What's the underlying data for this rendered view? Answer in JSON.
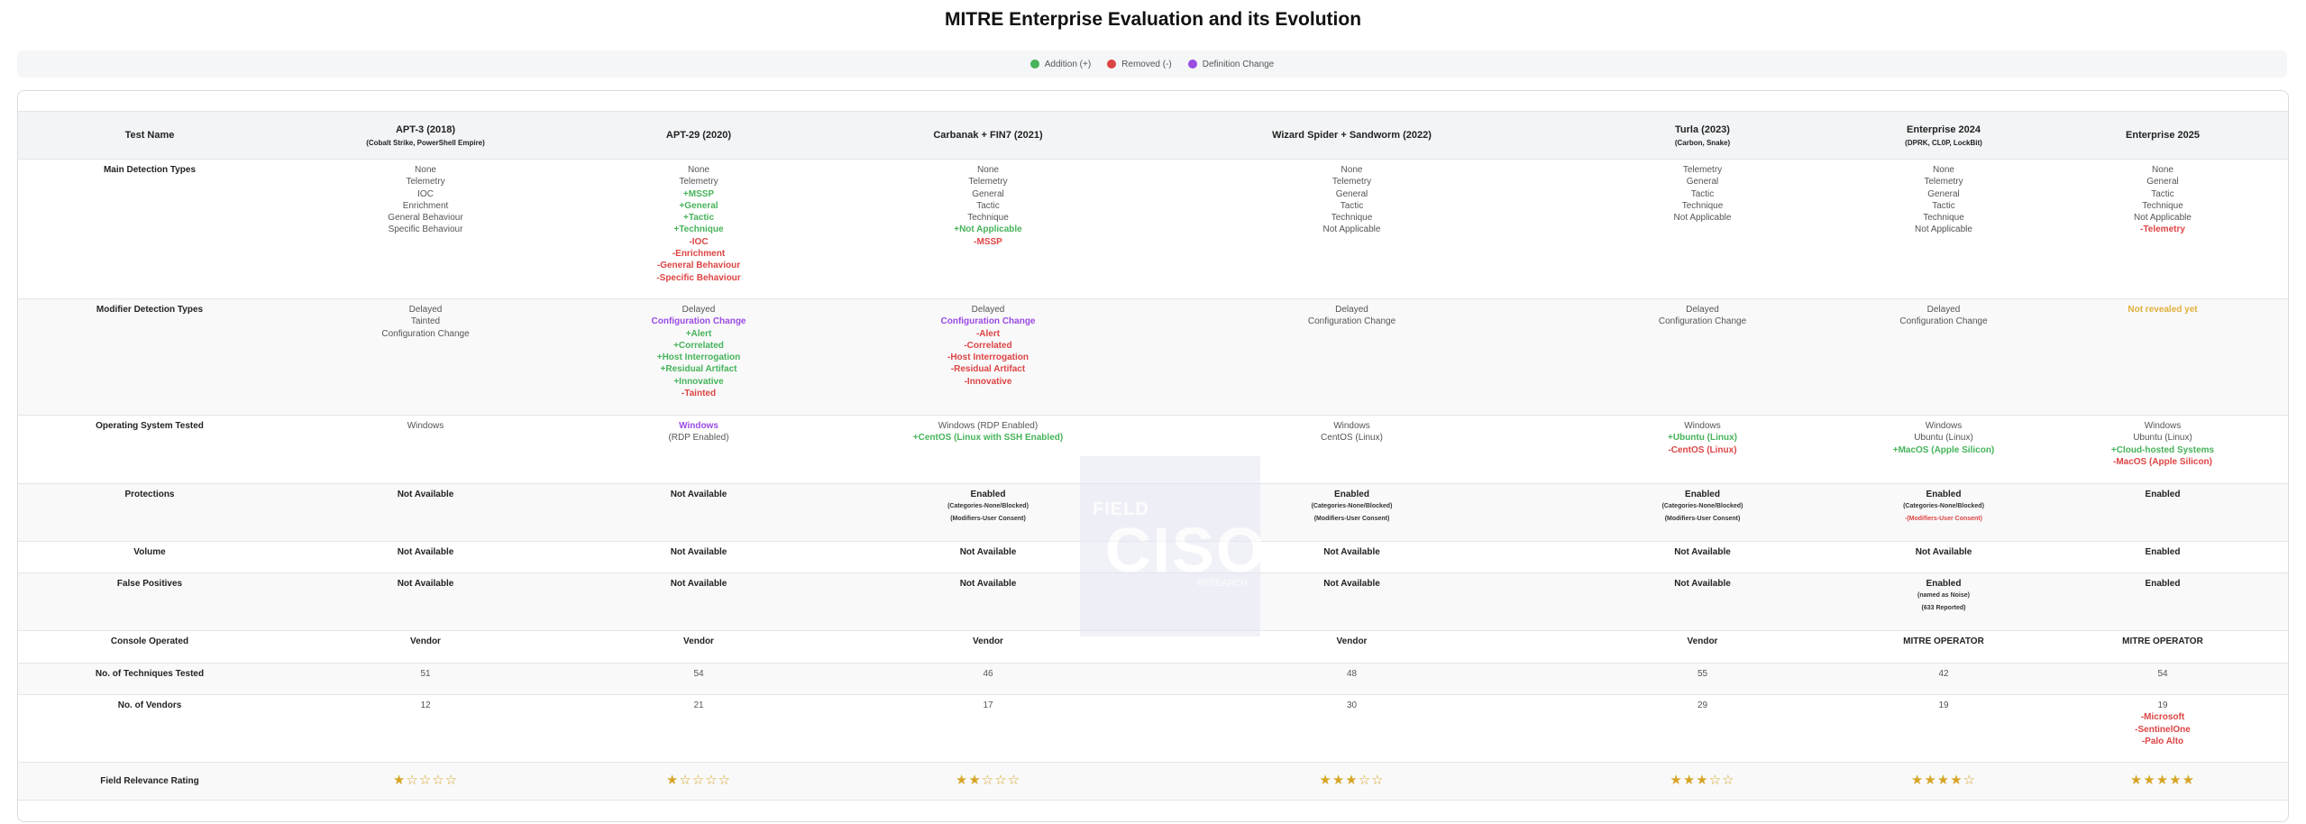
{
  "title": "MITRE Enterprise Evaluation and its Evolution",
  "legend": [
    {
      "label": "Addition (+)",
      "color": "#46b35a"
    },
    {
      "label": "Removed (-)",
      "color": "#dd4444"
    },
    {
      "label": "Definition Change",
      "color": "#9b4be2"
    }
  ],
  "watermark": {
    "top": "FIELD",
    "main": "CISO",
    "bottom": "RESEARCH"
  },
  "chart_data": {
    "type": "table",
    "header_first": "Test Name",
    "columns": [
      {
        "name": "APT-3 (2018)",
        "sub": "(Cobalt Strike, PowerShell Empire)"
      },
      {
        "name": "APT-29 (2020)",
        "sub": ""
      },
      {
        "name": "Carbanak + FIN7 (2021)",
        "sub": ""
      },
      {
        "name": "Wizard Spider + Sandworm (2022)",
        "sub": ""
      },
      {
        "name": "Turla (2023)",
        "sub": "(Carbon, Snake)"
      },
      {
        "name": "Enterprise 2024",
        "sub": "(DPRK, CL0P, LockBit)"
      },
      {
        "name": "Enterprise 2025",
        "sub": ""
      }
    ],
    "rows": [
      {
        "name": "Main Detection Types",
        "height": 155,
        "cells": [
          [
            {
              "t": "None",
              "s": "n"
            },
            {
              "t": "Telemetry",
              "s": "n"
            },
            {
              "t": "IOC",
              "s": "n"
            },
            {
              "t": "Enrichment",
              "s": "n"
            },
            {
              "t": "General Behaviour",
              "s": "n"
            },
            {
              "t": "Specific Behaviour",
              "s": "n"
            }
          ],
          [
            {
              "t": "None",
              "s": "n"
            },
            {
              "t": "Telemetry",
              "s": "n"
            },
            {
              "t": "+MSSP",
              "s": "add"
            },
            {
              "t": "+General",
              "s": "add"
            },
            {
              "t": "+Tactic",
              "s": "add"
            },
            {
              "t": "+Technique",
              "s": "add"
            },
            {
              "t": "-IOC",
              "s": "rem"
            },
            {
              "t": "-Enrichment",
              "s": "rem"
            },
            {
              "t": "-General Behaviour",
              "s": "rem"
            },
            {
              "t": "-Specific Behaviour",
              "s": "rem"
            }
          ],
          [
            {
              "t": "None",
              "s": "n"
            },
            {
              "t": "Telemetry",
              "s": "n"
            },
            {
              "t": "General",
              "s": "n"
            },
            {
              "t": "Tactic",
              "s": "n"
            },
            {
              "t": "Technique",
              "s": "n"
            },
            {
              "t": "+Not Applicable",
              "s": "add"
            },
            {
              "t": "-MSSP",
              "s": "rem"
            }
          ],
          [
            {
              "t": "None",
              "s": "n"
            },
            {
              "t": "Telemetry",
              "s": "n"
            },
            {
              "t": "General",
              "s": "n"
            },
            {
              "t": "Tactic",
              "s": "n"
            },
            {
              "t": "Technique",
              "s": "n"
            },
            {
              "t": "Not Applicable",
              "s": "n"
            }
          ],
          [
            {
              "t": "Telemetry",
              "s": "n"
            },
            {
              "t": "General",
              "s": "n"
            },
            {
              "t": "Tactic",
              "s": "n"
            },
            {
              "t": "Technique",
              "s": "n"
            },
            {
              "t": "Not Applicable",
              "s": "n"
            }
          ],
          [
            {
              "t": "None",
              "s": "n"
            },
            {
              "t": "Telemetry",
              "s": "n"
            },
            {
              "t": "General",
              "s": "n"
            },
            {
              "t": "Tactic",
              "s": "n"
            },
            {
              "t": "Technique",
              "s": "n"
            },
            {
              "t": "Not Applicable",
              "s": "n"
            }
          ],
          [
            {
              "t": "None",
              "s": "n"
            },
            {
              "t": "General",
              "s": "n"
            },
            {
              "t": "Tactic",
              "s": "n"
            },
            {
              "t": "Technique",
              "s": "n"
            },
            {
              "t": "Not Applicable",
              "s": "n"
            },
            {
              "t": "-Telemetry",
              "s": "rem"
            }
          ]
        ]
      },
      {
        "name": "Modifier Detection Types",
        "height": 129,
        "cells": [
          [
            {
              "t": "Delayed",
              "s": "n"
            },
            {
              "t": "Tainted",
              "s": "n"
            },
            {
              "t": "Configuration Change",
              "s": "n"
            }
          ],
          [
            {
              "t": "Delayed",
              "s": "n"
            },
            {
              "t": "Configuration Change",
              "s": "def"
            },
            {
              "t": "+Alert",
              "s": "add"
            },
            {
              "t": "+Correlated",
              "s": "add"
            },
            {
              "t": "+Host Interrogation",
              "s": "add"
            },
            {
              "t": "+Residual Artifact",
              "s": "add"
            },
            {
              "t": "+Innovative",
              "s": "add"
            },
            {
              "t": "-Tainted",
              "s": "rem"
            }
          ],
          [
            {
              "t": "Delayed",
              "s": "n"
            },
            {
              "t": "Configuration Change",
              "s": "def"
            },
            {
              "t": "-Alert",
              "s": "rem"
            },
            {
              "t": "-Correlated",
              "s": "rem"
            },
            {
              "t": "-Host Interrogation",
              "s": "rem"
            },
            {
              "t": "-Residual Artifact",
              "s": "rem"
            },
            {
              "t": "-Innovative",
              "s": "rem"
            }
          ],
          [
            {
              "t": "Delayed",
              "s": "n"
            },
            {
              "t": "Configuration Change",
              "s": "n"
            }
          ],
          [
            {
              "t": "Delayed",
              "s": "n"
            },
            {
              "t": "Configuration Change",
              "s": "n"
            }
          ],
          [
            {
              "t": "Delayed",
              "s": "n"
            },
            {
              "t": "Configuration Change",
              "s": "n"
            }
          ],
          [
            {
              "t": "Not revealed yet",
              "s": "rev"
            }
          ]
        ]
      },
      {
        "name": "Operating System Tested",
        "height": 76,
        "cells": [
          [
            {
              "t": "Windows",
              "s": "n"
            }
          ],
          [
            {
              "t": "Windows",
              "s": "def"
            },
            {
              "t": "(RDP Enabled)",
              "s": "n"
            }
          ],
          [
            {
              "t": "Windows (RDP Enabled)",
              "s": "n"
            },
            {
              "t": "+CentOS (Linux with SSH Enabled)",
              "s": "add"
            }
          ],
          [
            {
              "t": "Windows",
              "s": "n"
            },
            {
              "t": "CentOS (Linux)",
              "s": "n"
            }
          ],
          [
            {
              "t": "Windows",
              "s": "n"
            },
            {
              "t": "+Ubuntu (Linux)",
              "s": "add"
            },
            {
              "t": "-CentOS (Linux)",
              "s": "rem"
            }
          ],
          [
            {
              "t": "Windows",
              "s": "n"
            },
            {
              "t": "Ubuntu (Linux)",
              "s": "n"
            },
            {
              "t": "+MacOS (Apple Silicon)",
              "s": "add"
            }
          ],
          [
            {
              "t": "Windows",
              "s": "n"
            },
            {
              "t": "Ubuntu (Linux)",
              "s": "n"
            },
            {
              "t": "+Cloud-hosted Systems",
              "s": "add"
            },
            {
              "t": "-MacOS (Apple Silicon)",
              "s": "rem"
            }
          ]
        ]
      },
      {
        "name": "Protections",
        "height": 64,
        "cells": [
          [
            {
              "t": "Not Available",
              "s": "b"
            }
          ],
          [
            {
              "t": "Not Available",
              "s": "b"
            }
          ],
          [
            {
              "t": "Enabled",
              "s": "b"
            },
            {
              "t": "(Categories-None/Blocked)",
              "s": "sm"
            },
            {
              "t": "(Modifiers-User Consent)",
              "s": "sm"
            }
          ],
          [
            {
              "t": "Enabled",
              "s": "b"
            },
            {
              "t": "(Categories-None/Blocked)",
              "s": "sm"
            },
            {
              "t": "(Modifiers-User Consent)",
              "s": "sm"
            }
          ],
          [
            {
              "t": "Enabled",
              "s": "b"
            },
            {
              "t": "(Categories-None/Blocked)",
              "s": "sm"
            },
            {
              "t": "(Modifiers-User Consent)",
              "s": "sm"
            }
          ],
          [
            {
              "t": "Enabled",
              "s": "b"
            },
            {
              "t": "(Categories-None/Blocked)",
              "s": "sm"
            },
            {
              "t": "-(Modifiers-User Consent)",
              "s": "smrem"
            }
          ],
          [
            {
              "t": "Enabled",
              "s": "b"
            }
          ]
        ]
      },
      {
        "name": "Volume",
        "height": 35,
        "cells": [
          [
            {
              "t": "Not Available",
              "s": "b"
            }
          ],
          [
            {
              "t": "Not Available",
              "s": "b"
            }
          ],
          [
            {
              "t": "Not Available",
              "s": "b"
            }
          ],
          [
            {
              "t": "Not Available",
              "s": "b"
            }
          ],
          [
            {
              "t": "Not Available",
              "s": "b"
            }
          ],
          [
            {
              "t": "Not Available",
              "s": "b"
            }
          ],
          [
            {
              "t": "Enabled",
              "s": "b"
            }
          ]
        ]
      },
      {
        "name": "False Positives",
        "height": 64,
        "cells": [
          [
            {
              "t": "Not Available",
              "s": "b"
            }
          ],
          [
            {
              "t": "Not Available",
              "s": "b"
            }
          ],
          [
            {
              "t": "Not Available",
              "s": "b"
            }
          ],
          [
            {
              "t": "Not Available",
              "s": "b"
            }
          ],
          [
            {
              "t": "Not Available",
              "s": "b"
            }
          ],
          [
            {
              "t": "Enabled",
              "s": "b"
            },
            {
              "t": "(named as Noise)",
              "s": "sm"
            },
            {
              "t": "(633 Reported)",
              "s": "sm"
            }
          ],
          [
            {
              "t": "Enabled",
              "s": "b"
            }
          ]
        ]
      },
      {
        "name": "Console Operated",
        "height": 36,
        "cells": [
          [
            {
              "t": "Vendor",
              "s": "b"
            }
          ],
          [
            {
              "t": "Vendor",
              "s": "b"
            }
          ],
          [
            {
              "t": "Vendor",
              "s": "b"
            }
          ],
          [
            {
              "t": "Vendor",
              "s": "b"
            }
          ],
          [
            {
              "t": "Vendor",
              "s": "b"
            }
          ],
          [
            {
              "t": "MITRE OPERATOR",
              "s": "b"
            }
          ],
          [
            {
              "t": "MITRE OPERATOR",
              "s": "b"
            }
          ]
        ]
      },
      {
        "name": "No. of Techniques Tested",
        "height": 35,
        "cells": [
          [
            {
              "t": "51",
              "s": "n"
            }
          ],
          [
            {
              "t": "54",
              "s": "n"
            }
          ],
          [
            {
              "t": "46",
              "s": "n"
            }
          ],
          [
            {
              "t": "48",
              "s": "n"
            }
          ],
          [
            {
              "t": "55",
              "s": "n"
            }
          ],
          [
            {
              "t": "42",
              "s": "n"
            }
          ],
          [
            {
              "t": "54",
              "s": "n"
            }
          ]
        ]
      },
      {
        "name": "No. of Vendors",
        "height": 75,
        "cells": [
          [
            {
              "t": "12",
              "s": "n"
            }
          ],
          [
            {
              "t": "21",
              "s": "n"
            }
          ],
          [
            {
              "t": "17",
              "s": "n"
            }
          ],
          [
            {
              "t": "30",
              "s": "n"
            }
          ],
          [
            {
              "t": "29",
              "s": "n"
            }
          ],
          [
            {
              "t": "19",
              "s": "n"
            }
          ],
          [
            {
              "t": "19",
              "s": "n"
            },
            {
              "t": "-Microsoft",
              "s": "rem"
            },
            {
              "t": "-SentinelOne",
              "s": "rem"
            },
            {
              "t": "-Palo Alto",
              "s": "rem"
            }
          ]
        ]
      }
    ],
    "rating_row": {
      "name": "Field Relevance Rating",
      "ratings": [
        1,
        1,
        2,
        3,
        3,
        4,
        5
      ],
      "max": 5
    }
  }
}
